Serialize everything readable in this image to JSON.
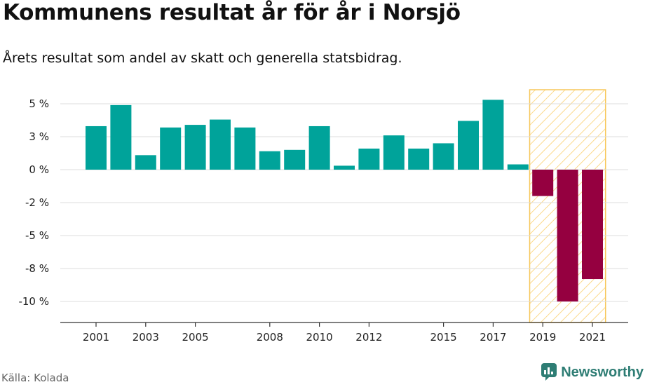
{
  "title": "Kommunens resultat år för år i Norsjö",
  "subtitle": "Årets resultat som andel av skatt och generella statsbidrag.",
  "source": "Källa: Kolada",
  "brand": "Newsworthy",
  "colors": {
    "positive": "#00a39a",
    "negative": "#950040",
    "highlight_stroke": "#f7c75a",
    "grid": "#dddddd"
  },
  "chart_data": {
    "type": "bar",
    "x": [
      2001,
      2002,
      2003,
      2004,
      2005,
      2006,
      2007,
      2008,
      2009,
      2010,
      2011,
      2012,
      2013,
      2014,
      2015,
      2016,
      2017,
      2018,
      2019,
      2020,
      2021
    ],
    "values": [
      3.3,
      4.9,
      1.1,
      3.2,
      3.4,
      3.8,
      3.2,
      1.4,
      1.5,
      3.3,
      0.3,
      1.6,
      2.6,
      1.6,
      2.0,
      3.7,
      5.3,
      0.4,
      -2.0,
      -10.0,
      -8.3
    ],
    "x_tick_labels": [
      "2001",
      "2003",
      "2005",
      "2008",
      "2010",
      "2012",
      "2015",
      "2017",
      "2019",
      "2021"
    ],
    "y_ticks": [
      5,
      2.5,
      0,
      -2.5,
      -5,
      -7.5,
      -10
    ],
    "y_tick_labels": [
      "5 %",
      "3 %",
      "0 %",
      "-2 %",
      "-5 %",
      "-8 %",
      "-10 %"
    ],
    "ylim": [
      -11.5,
      6
    ],
    "highlight_range": [
      2019,
      2021
    ],
    "grid": true,
    "xlabel": "",
    "ylabel": ""
  }
}
